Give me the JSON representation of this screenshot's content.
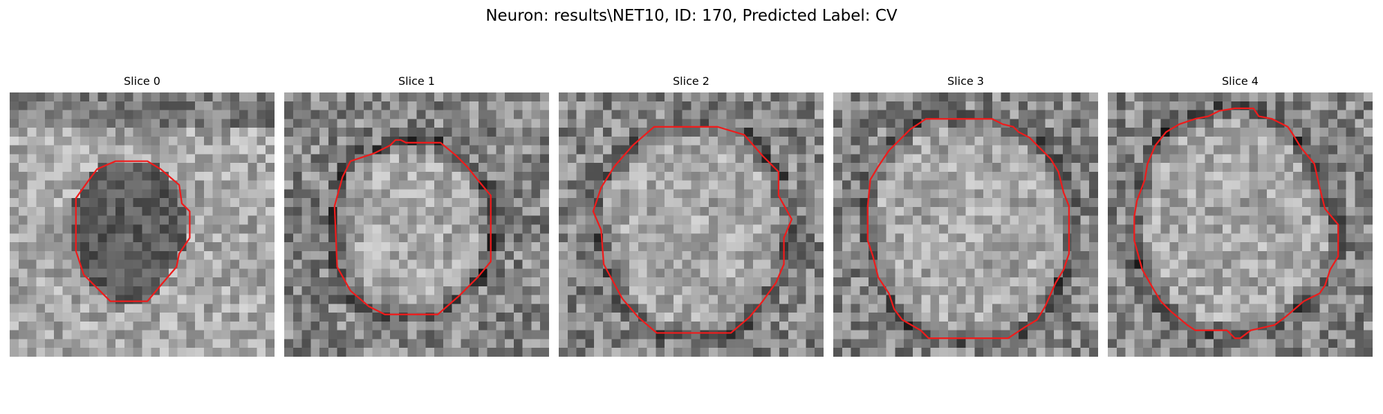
{
  "figure": {
    "title": "Neuron: results\\NET10, ID: 170, Predicted Label: CV",
    "outline_color": "#ee1c1c",
    "colormap": "grayscale",
    "grid_cells": 30
  },
  "slices": [
    {
      "title": "Slice 0",
      "contour": [
        [
          0.4,
          0.26
        ],
        [
          0.52,
          0.26
        ],
        [
          0.57,
          0.29
        ],
        [
          0.64,
          0.35
        ],
        [
          0.65,
          0.42
        ],
        [
          0.68,
          0.45
        ],
        [
          0.68,
          0.55
        ],
        [
          0.64,
          0.61
        ],
        [
          0.63,
          0.66
        ],
        [
          0.57,
          0.73
        ],
        [
          0.52,
          0.79
        ],
        [
          0.38,
          0.79
        ],
        [
          0.33,
          0.74
        ],
        [
          0.28,
          0.69
        ],
        [
          0.25,
          0.6
        ],
        [
          0.25,
          0.4
        ],
        [
          0.3,
          0.33
        ],
        [
          0.33,
          0.29
        ]
      ],
      "dark_ring": false,
      "dark_interior": true
    },
    {
      "title": "Slice 1",
      "contour": [
        [
          0.34,
          0.23
        ],
        [
          0.4,
          0.2
        ],
        [
          0.42,
          0.18
        ],
        [
          0.44,
          0.18
        ],
        [
          0.46,
          0.19
        ],
        [
          0.5,
          0.19
        ],
        [
          0.59,
          0.19
        ],
        [
          0.65,
          0.24
        ],
        [
          0.69,
          0.28
        ],
        [
          0.73,
          0.33
        ],
        [
          0.78,
          0.39
        ],
        [
          0.78,
          0.64
        ],
        [
          0.73,
          0.7
        ],
        [
          0.66,
          0.77
        ],
        [
          0.58,
          0.84
        ],
        [
          0.38,
          0.84
        ],
        [
          0.32,
          0.81
        ],
        [
          0.25,
          0.75
        ],
        [
          0.2,
          0.66
        ],
        [
          0.19,
          0.43
        ],
        [
          0.22,
          0.32
        ],
        [
          0.25,
          0.26
        ]
      ],
      "dark_ring": true,
      "dark_interior": false
    },
    {
      "title": "Slice 2",
      "contour": [
        [
          0.28,
          0.2
        ],
        [
          0.36,
          0.13
        ],
        [
          0.6,
          0.13
        ],
        [
          0.7,
          0.16
        ],
        [
          0.77,
          0.24
        ],
        [
          0.83,
          0.3
        ],
        [
          0.83,
          0.39
        ],
        [
          0.88,
          0.48
        ],
        [
          0.85,
          0.55
        ],
        [
          0.85,
          0.65
        ],
        [
          0.82,
          0.72
        ],
        [
          0.77,
          0.79
        ],
        [
          0.72,
          0.85
        ],
        [
          0.65,
          0.91
        ],
        [
          0.37,
          0.91
        ],
        [
          0.3,
          0.85
        ],
        [
          0.24,
          0.78
        ],
        [
          0.17,
          0.65
        ],
        [
          0.16,
          0.52
        ],
        [
          0.13,
          0.45
        ],
        [
          0.16,
          0.36
        ],
        [
          0.21,
          0.28
        ]
      ],
      "dark_ring": true,
      "dark_interior": false
    },
    {
      "title": "Slice 3",
      "contour": [
        [
          0.21,
          0.22
        ],
        [
          0.29,
          0.14
        ],
        [
          0.35,
          0.1
        ],
        [
          0.6,
          0.1
        ],
        [
          0.64,
          0.12
        ],
        [
          0.68,
          0.13
        ],
        [
          0.7,
          0.15
        ],
        [
          0.74,
          0.17
        ],
        [
          0.78,
          0.21
        ],
        [
          0.82,
          0.25
        ],
        [
          0.85,
          0.3
        ],
        [
          0.87,
          0.38
        ],
        [
          0.89,
          0.43
        ],
        [
          0.89,
          0.61
        ],
        [
          0.87,
          0.67
        ],
        [
          0.84,
          0.72
        ],
        [
          0.8,
          0.81
        ],
        [
          0.77,
          0.86
        ],
        [
          0.72,
          0.89
        ],
        [
          0.66,
          0.93
        ],
        [
          0.52,
          0.93
        ],
        [
          0.36,
          0.93
        ],
        [
          0.33,
          0.9
        ],
        [
          0.26,
          0.86
        ],
        [
          0.23,
          0.82
        ],
        [
          0.21,
          0.76
        ],
        [
          0.17,
          0.7
        ],
        [
          0.15,
          0.62
        ],
        [
          0.13,
          0.56
        ],
        [
          0.13,
          0.43
        ],
        [
          0.14,
          0.33
        ],
        [
          0.17,
          0.28
        ]
      ],
      "dark_ring": true,
      "dark_interior": false
    },
    {
      "title": "Slice 4",
      "contour": [
        [
          0.22,
          0.15
        ],
        [
          0.27,
          0.12
        ],
        [
          0.33,
          0.1
        ],
        [
          0.38,
          0.09
        ],
        [
          0.42,
          0.07
        ],
        [
          0.48,
          0.06
        ],
        [
          0.55,
          0.06
        ],
        [
          0.57,
          0.09
        ],
        [
          0.62,
          0.1
        ],
        [
          0.68,
          0.13
        ],
        [
          0.7,
          0.16
        ],
        [
          0.73,
          0.21
        ],
        [
          0.78,
          0.27
        ],
        [
          0.8,
          0.36
        ],
        [
          0.82,
          0.44
        ],
        [
          0.87,
          0.5
        ],
        [
          0.87,
          0.62
        ],
        [
          0.84,
          0.67
        ],
        [
          0.82,
          0.73
        ],
        [
          0.8,
          0.76
        ],
        [
          0.74,
          0.79
        ],
        [
          0.67,
          0.85
        ],
        [
          0.63,
          0.88
        ],
        [
          0.54,
          0.9
        ],
        [
          0.5,
          0.93
        ],
        [
          0.48,
          0.93
        ],
        [
          0.45,
          0.9
        ],
        [
          0.33,
          0.9
        ],
        [
          0.3,
          0.88
        ],
        [
          0.24,
          0.83
        ],
        [
          0.2,
          0.79
        ],
        [
          0.17,
          0.74
        ],
        [
          0.13,
          0.67
        ],
        [
          0.1,
          0.56
        ],
        [
          0.1,
          0.47
        ],
        [
          0.11,
          0.41
        ],
        [
          0.14,
          0.33
        ],
        [
          0.15,
          0.27
        ],
        [
          0.18,
          0.2
        ]
      ],
      "dark_ring": true,
      "dark_interior": false
    }
  ]
}
